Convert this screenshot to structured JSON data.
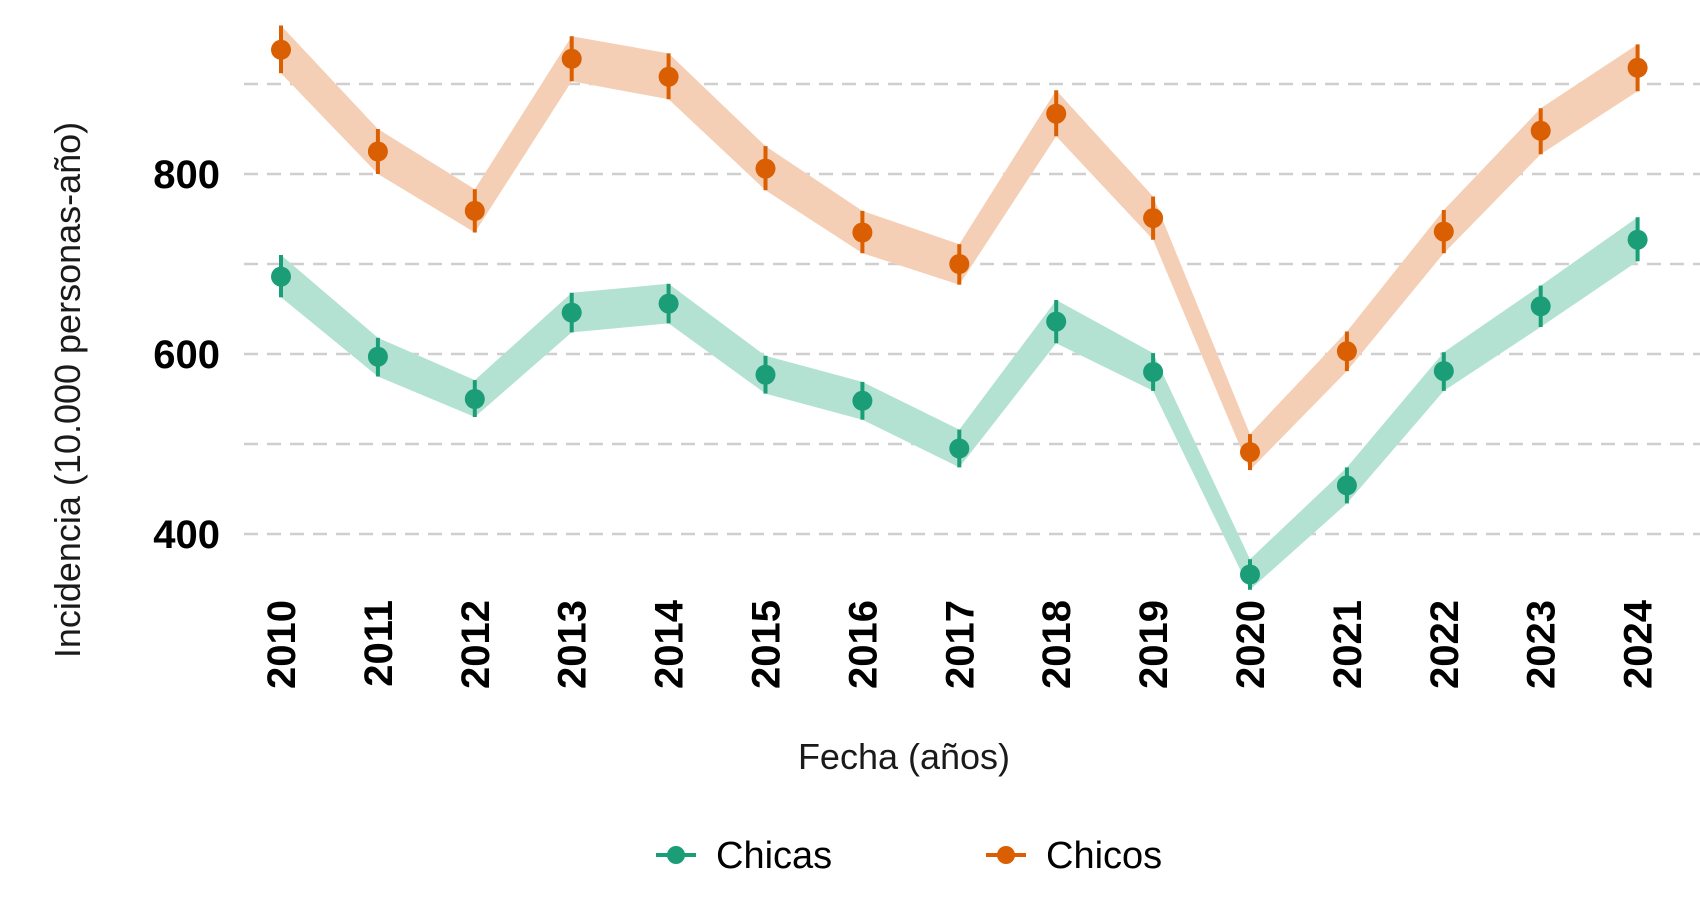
{
  "chart_data": {
    "type": "line",
    "title": "",
    "xlabel": "Fecha (años)",
    "ylabel": "Incidencia (10.000 personas-año)",
    "categories": [
      "2010",
      "2011",
      "2012",
      "2013",
      "2014",
      "2015",
      "2016",
      "2017",
      "2018",
      "2019",
      "2020",
      "2021",
      "2022",
      "2023",
      "2024"
    ],
    "ylim": [
      350,
      960
    ],
    "yticks": [
      400,
      600,
      800
    ],
    "grid": true,
    "legend_position": "bottom",
    "series": [
      {
        "name": "Chicas",
        "color": "#1b9e77",
        "ribbon_color": "#b3e2d2",
        "values": [
          686,
          597,
          550,
          646,
          656,
          577,
          548,
          495,
          636,
          580,
          355,
          454,
          581,
          653,
          727
        ],
        "lower": [
          663,
          575,
          530,
          624,
          634,
          556,
          527,
          474,
          612,
          559,
          338,
          434,
          559,
          630,
          703
        ],
        "upper": [
          710,
          618,
          571,
          668,
          678,
          598,
          569,
          516,
          660,
          601,
          372,
          474,
          602,
          676,
          752
        ]
      },
      {
        "name": "Chicos",
        "color": "#d95f02",
        "ribbon_color": "#f5cfb5",
        "values": [
          938,
          825,
          759,
          928,
          908,
          806,
          735,
          700,
          867,
          751,
          491,
          603,
          736,
          848,
          918
        ],
        "lower": [
          912,
          800,
          735,
          903,
          883,
          782,
          712,
          677,
          842,
          727,
          471,
          581,
          712,
          822,
          892
        ],
        "upper": [
          965,
          850,
          783,
          953,
          934,
          831,
          759,
          722,
          893,
          775,
          511,
          625,
          760,
          873,
          944
        ]
      }
    ]
  }
}
